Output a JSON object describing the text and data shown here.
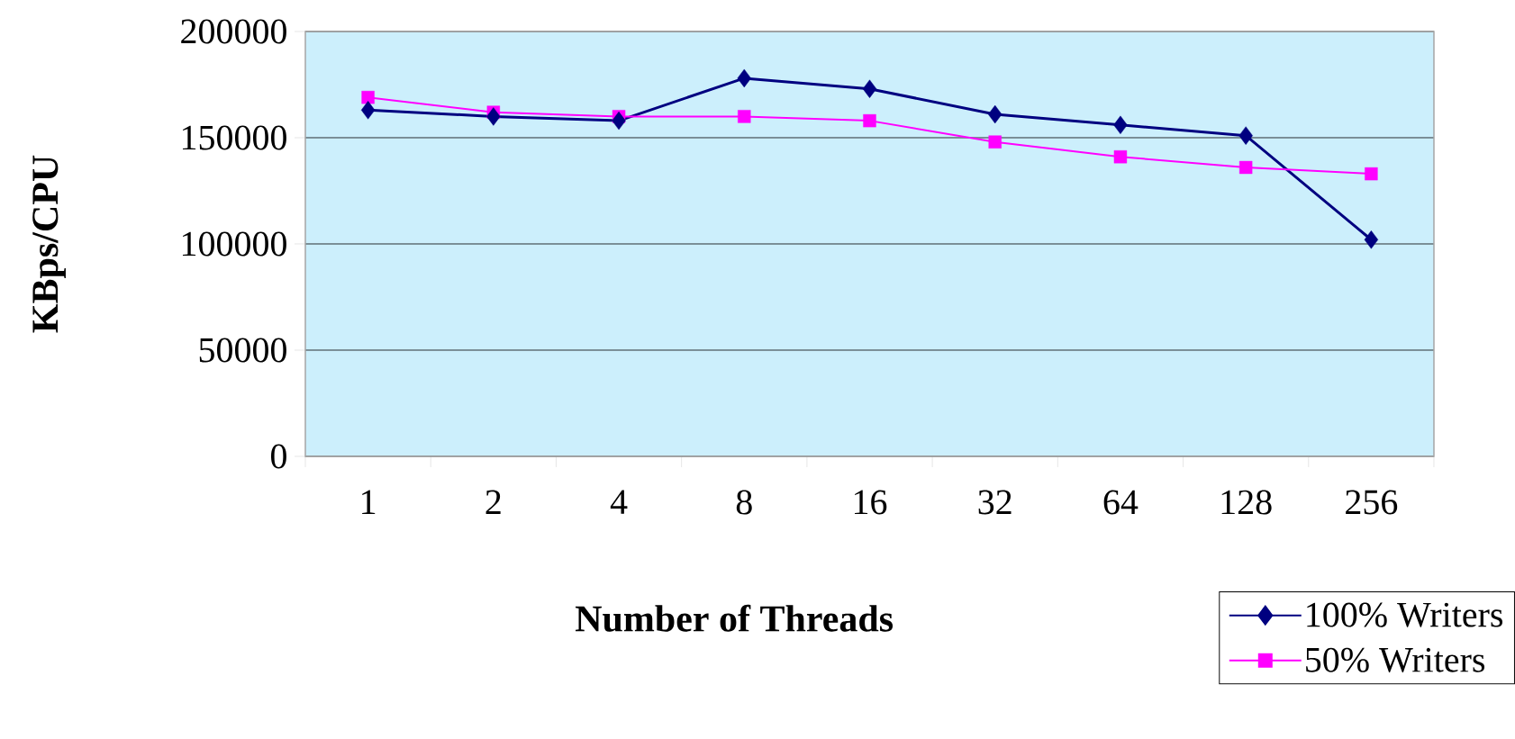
{
  "chart_data": {
    "type": "line",
    "xlabel": "Number of Threads",
    "ylabel": "KBps/CPU",
    "categories": [
      "1",
      "2",
      "4",
      "8",
      "16",
      "32",
      "64",
      "128",
      "256"
    ],
    "series": [
      {
        "name": "100% Writers",
        "color": "#000080",
        "marker": "diamond",
        "values": [
          163000,
          160000,
          158000,
          178000,
          173000,
          161000,
          156000,
          151000,
          102000
        ]
      },
      {
        "name": "50% Writers",
        "color": "#ff00ff",
        "marker": "square",
        "values": [
          169000,
          162000,
          160000,
          160000,
          158000,
          148000,
          141000,
          136000,
          133000
        ]
      }
    ],
    "ylim": [
      0,
      200000
    ],
    "yticks": [
      0,
      50000,
      100000,
      150000,
      200000
    ],
    "grid": "y",
    "legend": "bottom right"
  }
}
